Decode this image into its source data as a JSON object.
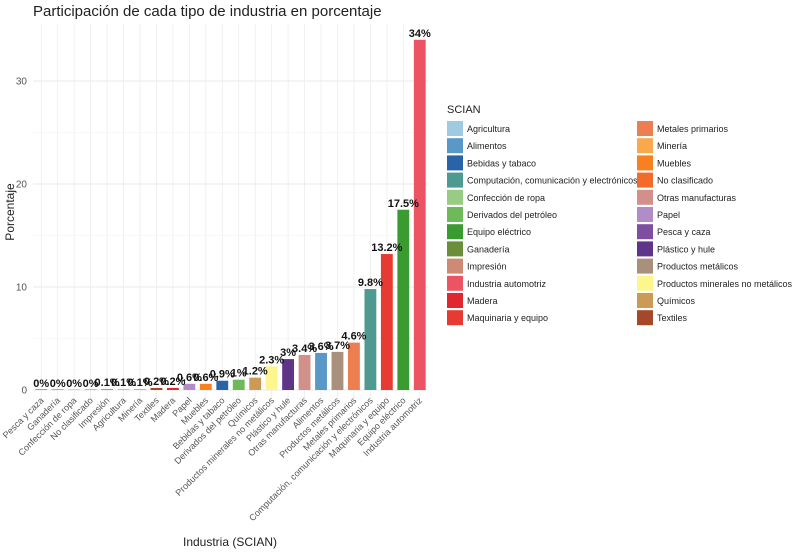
{
  "chart_data": {
    "type": "bar",
    "title": "Participación de cada tipo de industria en porcentaje",
    "xlabel": "Industria (SCIAN)",
    "ylabel": "Porcentaje",
    "ylim": [
      0,
      35.5
    ],
    "yticks": [
      0,
      10,
      20,
      30
    ],
    "grid": true,
    "legend_position": "right",
    "categories": [
      "Pesca y caza",
      "Ganadería",
      "Confección de ropa",
      "No clasificado",
      "Impresión",
      "Agricultura",
      "Minería",
      "Textiles",
      "Madera",
      "Papel",
      "Muebles",
      "Bebidas y tabaco",
      "Derivados del petróleo",
      "Químicos",
      "Productos minerales no metálicos",
      "Plástico y hule",
      "Otras manufacturas",
      "Alimentos",
      "Productos metálicos",
      "Metales primarios",
      "Computación, comunicación y electrónicos",
      "Maquinaria y equipo",
      "Equipo eléctrico",
      "Industria automotriz"
    ],
    "values": [
      0.0,
      0.0,
      0.0,
      0.0,
      0.1,
      0.1,
      0.1,
      0.2,
      0.2,
      0.6,
      0.6,
      0.9,
      1.0,
      1.2,
      2.3,
      3.0,
      3.4,
      3.6,
      3.7,
      4.6,
      9.8,
      13.2,
      17.5,
      34.0
    ],
    "labels": [
      "0%",
      "0%",
      "0%",
      "0%",
      "0.1%",
      "0.1%",
      "0.1%",
      "0.2%",
      "0.2%",
      "0.6%",
      "0.6%",
      "0.9%",
      "1%",
      "1.2%",
      "2.3%",
      "3%",
      "3.4%",
      "3.6%",
      "3.7%",
      "4.6%",
      "9.8%",
      "13.2%",
      "17.5%",
      "34%"
    ],
    "colors": [
      "#7E4FA0",
      "#6A8E3A",
      "#98CC84",
      "#F26B2A",
      "#CE8A74",
      "#A0C9E2",
      "#F9A94B",
      "#A5482A",
      "#E0262F",
      "#B28CC6",
      "#FA801F",
      "#2A64A8",
      "#6EBA5A",
      "#CB9A54",
      "#FDF58E",
      "#5E3588",
      "#D1918A",
      "#5A98C7",
      "#A9907D",
      "#ED7E52",
      "#4F9A90",
      "#E73A32",
      "#399B30",
      "#EC5464"
    ],
    "legend": {
      "title": "SCIAN",
      "entries": [
        {
          "name": "Agricultura",
          "color": "#A0C9E2"
        },
        {
          "name": "Alimentos",
          "color": "#5A98C7"
        },
        {
          "name": "Bebidas y tabaco",
          "color": "#2A64A8"
        },
        {
          "name": "Computación, comunicación y electrónicos",
          "color": "#4F9A90"
        },
        {
          "name": "Confección de ropa",
          "color": "#98CC84"
        },
        {
          "name": "Derivados del petróleo",
          "color": "#6EBA5A"
        },
        {
          "name": "Equipo eléctrico",
          "color": "#399B30"
        },
        {
          "name": "Ganadería",
          "color": "#6A8E3A"
        },
        {
          "name": "Impresión",
          "color": "#CE8A74"
        },
        {
          "name": "Industria automotriz",
          "color": "#EC5464"
        },
        {
          "name": "Madera",
          "color": "#E0262F"
        },
        {
          "name": "Maquinaria y equipo",
          "color": "#E73A32"
        },
        {
          "name": "Metales primarios",
          "color": "#ED7E52"
        },
        {
          "name": "Minería",
          "color": "#F9A94B"
        },
        {
          "name": "Muebles",
          "color": "#FA801F"
        },
        {
          "name": "No clasificado",
          "color": "#F26B2A"
        },
        {
          "name": "Otras manufacturas",
          "color": "#D1918A"
        },
        {
          "name": "Papel",
          "color": "#B28CC6"
        },
        {
          "name": "Pesca y caza",
          "color": "#7E4FA0"
        },
        {
          "name": "Plástico y hule",
          "color": "#5E3588"
        },
        {
          "name": "Productos metálicos",
          "color": "#A9907D"
        },
        {
          "name": "Productos minerales no metálicos",
          "color": "#FDF58E"
        },
        {
          "name": "Químicos",
          "color": "#CB9A54"
        },
        {
          "name": "Textiles",
          "color": "#A5482A"
        }
      ]
    }
  }
}
